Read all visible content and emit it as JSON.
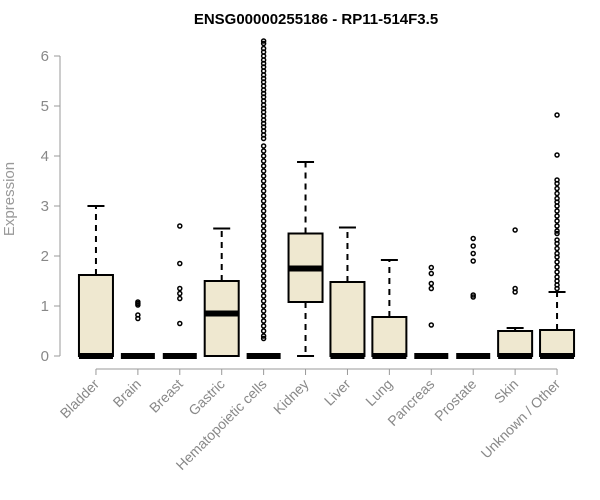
{
  "chart_data": {
    "type": "box",
    "title": "ENSG00000255186 - RP11-514F3.5",
    "xlabel": "",
    "ylabel": "Expression",
    "ylim": [
      0,
      6.3
    ],
    "yticks": [
      "0",
      "1",
      "2",
      "3",
      "4",
      "5",
      "6"
    ],
    "categories": [
      "Bladder",
      "Brain",
      "Breast",
      "Gastric",
      "Hematopoietic cells",
      "Kidney",
      "Liver",
      "Lung",
      "Pancreas",
      "Prostate",
      "Skin",
      "Unknown / Other"
    ],
    "box_fill": "#efe8d0",
    "box_stroke": "#000000",
    "boxes": [
      {
        "q1": 0,
        "median": 0,
        "q3": 1.62,
        "whisker_low": 0,
        "whisker_high": 3.0,
        "outliers": []
      },
      {
        "q1": 0,
        "median": 0,
        "q3": 0,
        "whisker_low": 0,
        "whisker_high": 0,
        "outliers": [
          1.08,
          1.05,
          1.02,
          0.82,
          0.75
        ]
      },
      {
        "q1": 0,
        "median": 0,
        "q3": 0,
        "whisker_low": 0,
        "whisker_high": 0,
        "outliers": [
          2.6,
          1.85,
          1.35,
          1.25,
          1.15,
          0.65
        ]
      },
      {
        "q1": 0,
        "median": 0.85,
        "q3": 1.5,
        "whisker_low": 0,
        "whisker_high": 2.55,
        "outliers": []
      },
      {
        "q1": 0,
        "median": 0,
        "q3": 0,
        "whisker_low": 0,
        "whisker_high": 0,
        "outliers": [
          6.3,
          6.25,
          6.15,
          6.08,
          6.0,
          5.92,
          5.85,
          5.78,
          5.7,
          5.62,
          5.55,
          5.48,
          5.4,
          5.32,
          5.25,
          5.18,
          5.1,
          5.02,
          4.95,
          4.88,
          4.8,
          4.72,
          4.65,
          4.58,
          4.5,
          4.42,
          4.35,
          4.2,
          4.1,
          4.0,
          3.9,
          3.8,
          3.7,
          3.6,
          3.5,
          3.4,
          3.3,
          3.2,
          3.1,
          3.0,
          2.9,
          2.8,
          2.7,
          2.6,
          2.5,
          2.4,
          2.3,
          2.2,
          2.1,
          2.0,
          1.9,
          1.8,
          1.7,
          1.6,
          1.5,
          1.4,
          1.3,
          1.2,
          1.1,
          1.0,
          0.9,
          0.8,
          0.7,
          0.6,
          0.5,
          0.4,
          0.35
        ]
      },
      {
        "q1": 1.08,
        "median": 1.75,
        "q3": 2.45,
        "whisker_low": 0,
        "whisker_high": 3.88,
        "outliers": []
      },
      {
        "q1": 0,
        "median": 0,
        "q3": 1.48,
        "whisker_low": 0,
        "whisker_high": 2.57,
        "outliers": []
      },
      {
        "q1": 0,
        "median": 0,
        "q3": 0.78,
        "whisker_low": 0,
        "whisker_high": 1.92,
        "outliers": []
      },
      {
        "q1": 0,
        "median": 0,
        "q3": 0,
        "whisker_low": 0,
        "whisker_high": 0,
        "outliers": [
          1.77,
          1.65,
          1.45,
          1.35,
          0.62
        ]
      },
      {
        "q1": 0,
        "median": 0,
        "q3": 0,
        "whisker_low": 0,
        "whisker_high": 0,
        "outliers": [
          2.35,
          2.2,
          2.05,
          1.9,
          1.22,
          1.18
        ]
      },
      {
        "q1": 0,
        "median": 0,
        "q3": 0.5,
        "whisker_low": 0,
        "whisker_high": 0.56,
        "outliers": [
          2.52,
          1.35,
          1.28
        ]
      },
      {
        "q1": 0,
        "median": 0,
        "q3": 0.52,
        "whisker_low": 0,
        "whisker_high": 1.28,
        "outliers": [
          4.82,
          4.02,
          3.52,
          3.45,
          3.35,
          3.25,
          3.15,
          3.08,
          3.0,
          2.9,
          2.8,
          2.7,
          2.6,
          2.5,
          2.45,
          2.32,
          2.25,
          2.15,
          2.05,
          1.98,
          1.88,
          1.78,
          1.68,
          1.58,
          1.5,
          1.42,
          1.35
        ]
      }
    ]
  }
}
